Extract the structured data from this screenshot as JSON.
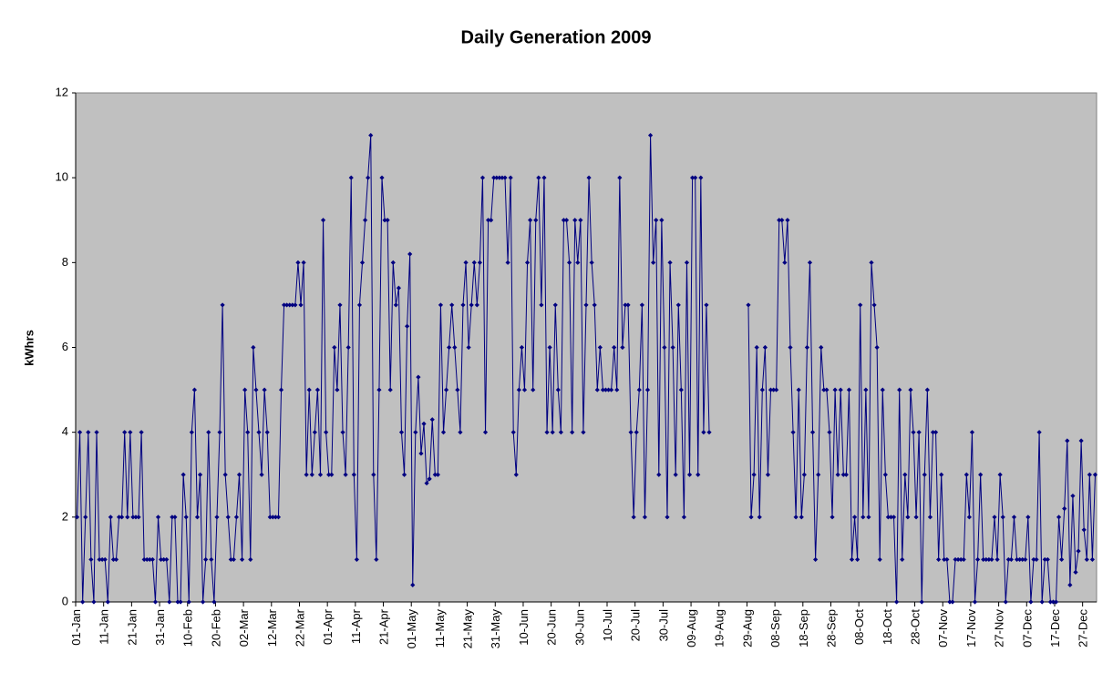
{
  "chart_data": {
    "type": "line",
    "title": "Daily Generation 2009",
    "y_label": "kWhrs",
    "ylim": [
      0,
      12
    ],
    "yticks": [
      0,
      2,
      4,
      6,
      8,
      10,
      12
    ],
    "grid": false,
    "background": "#c0c0c0",
    "categories": [
      "01-Jan",
      null,
      null,
      null,
      null,
      null,
      null,
      null,
      null,
      null,
      "11-Jan",
      null,
      null,
      null,
      null,
      null,
      null,
      null,
      null,
      null,
      "21-Jan",
      null,
      null,
      null,
      null,
      null,
      null,
      null,
      null,
      null,
      "31-Jan",
      null,
      null,
      null,
      null,
      null,
      null,
      null,
      null,
      null,
      "10-Feb",
      null,
      null,
      null,
      null,
      null,
      null,
      null,
      null,
      null,
      "20-Feb",
      null,
      null,
      null,
      null,
      null,
      null,
      null,
      null,
      null,
      "02-Mar",
      null,
      null,
      null,
      null,
      null,
      null,
      null,
      null,
      null,
      "12-Mar",
      null,
      null,
      null,
      null,
      null,
      null,
      null,
      null,
      null,
      "22-Mar",
      null,
      null,
      null,
      null,
      null,
      null,
      null,
      null,
      null,
      "01-Apr",
      null,
      null,
      null,
      null,
      null,
      null,
      null,
      null,
      null,
      "11-Apr",
      null,
      null,
      null,
      null,
      null,
      null,
      null,
      null,
      null,
      "21-Apr",
      null,
      null,
      null,
      null,
      null,
      null,
      null,
      null,
      null,
      "01-May",
      null,
      null,
      null,
      null,
      null,
      null,
      null,
      null,
      null,
      "11-May",
      null,
      null,
      null,
      null,
      null,
      null,
      null,
      null,
      null,
      "21-May",
      null,
      null,
      null,
      null,
      null,
      null,
      null,
      null,
      null,
      "31-May",
      null,
      null,
      null,
      null,
      null,
      null,
      null,
      null,
      null,
      "10-Jun",
      null,
      null,
      null,
      null,
      null,
      null,
      null,
      null,
      null,
      "20-Jun",
      null,
      null,
      null,
      null,
      null,
      null,
      null,
      null,
      null,
      "30-Jun",
      null,
      null,
      null,
      null,
      null,
      null,
      null,
      null,
      null,
      "10-Jul",
      null,
      null,
      null,
      null,
      null,
      null,
      null,
      null,
      null,
      "20-Jul",
      null,
      null,
      null,
      null,
      null,
      null,
      null,
      null,
      null,
      "30-Jul",
      null,
      null,
      null,
      null,
      null,
      null,
      null,
      null,
      null,
      "09-Aug",
      null,
      null,
      null,
      null,
      null,
      null,
      null,
      null,
      null,
      "19-Aug",
      null,
      null,
      null,
      null,
      null,
      null,
      null,
      null,
      null,
      "29-Aug",
      null,
      null,
      null,
      null,
      null,
      null,
      null,
      null,
      null,
      "08-Sep",
      null,
      null,
      null,
      null,
      null,
      null,
      null,
      null,
      null,
      "18-Sep",
      null,
      null,
      null,
      null,
      null,
      null,
      null,
      null,
      null,
      "28-Sep",
      null,
      null,
      null,
      null,
      null,
      null,
      null,
      null,
      null,
      "08-Oct",
      null,
      null,
      null,
      null,
      null,
      null,
      null,
      null,
      null,
      "18-Oct",
      null,
      null,
      null,
      null,
      null,
      null,
      null,
      null,
      null,
      "28-Oct",
      null,
      null,
      null,
      null,
      null,
      null,
      null,
      null,
      null,
      "07-Nov",
      null,
      null,
      null,
      null,
      null,
      null,
      null,
      null,
      null,
      "17-Nov",
      null,
      null,
      null,
      null,
      null,
      null,
      null,
      null,
      null,
      "27-Nov",
      null,
      null,
      null,
      null,
      null,
      null,
      null,
      null,
      null,
      "07-Dec",
      null,
      null,
      null,
      null,
      null,
      null,
      null,
      null,
      null,
      "17-Dec",
      null,
      null,
      null,
      null,
      null,
      null,
      null,
      null,
      null,
      "27-Dec",
      null,
      null,
      null,
      null
    ],
    "series": [
      {
        "color": "#000080",
        "values": [
          2,
          4,
          0,
          2,
          4,
          1,
          0,
          4,
          1,
          1,
          1,
          0,
          2,
          1,
          1,
          2,
          2,
          4,
          2,
          4,
          2,
          2,
          2,
          4,
          1,
          1,
          1,
          1,
          0,
          2,
          1,
          1,
          1,
          0,
          2,
          2,
          0,
          0,
          3,
          2,
          0,
          4,
          5,
          2,
          3,
          0,
          1,
          4,
          1,
          0,
          2,
          4,
          7,
          3,
          2,
          1,
          1,
          2,
          3,
          1,
          5,
          4,
          1,
          6,
          5,
          4,
          3,
          5,
          4,
          2,
          2,
          2,
          2,
          5,
          7,
          7,
          7,
          7,
          7,
          8,
          7,
          8,
          3,
          5,
          3,
          4,
          5,
          3,
          9,
          4,
          3,
          3,
          6,
          5,
          7,
          4,
          3,
          6,
          10,
          3,
          1,
          7,
          8,
          9,
          10,
          11,
          3,
          1,
          5,
          10,
          9,
          9,
          5,
          8,
          7,
          7.4,
          4,
          3,
          6.5,
          8.2,
          0.4,
          4,
          5.3,
          3.5,
          4.2,
          2.8,
          2.9,
          4.3,
          3,
          3,
          7,
          4,
          5,
          6,
          7,
          6,
          5,
          4,
          7,
          8,
          6,
          7,
          8,
          7,
          8,
          10,
          4,
          9,
          9,
          10,
          10,
          10,
          10,
          10,
          8,
          10,
          4,
          3,
          5,
          6,
          5,
          8,
          9,
          5,
          9,
          10,
          7,
          10,
          4,
          6,
          4,
          7,
          5,
          4,
          9,
          9,
          8,
          4,
          9,
          8,
          9,
          4,
          7,
          10,
          8,
          7,
          5,
          6,
          5,
          5,
          5,
          5,
          6,
          5,
          10,
          6,
          7,
          7,
          4,
          2,
          4,
          5,
          7,
          2,
          5,
          11,
          8,
          9,
          3,
          9,
          6,
          2,
          8,
          6,
          3,
          7,
          5,
          2,
          8,
          3,
          10,
          10,
          3,
          10,
          4,
          7,
          4,
          null,
          null,
          null,
          null,
          null,
          null,
          null,
          null,
          null,
          null,
          null,
          null,
          null,
          7,
          2,
          3,
          6,
          2,
          5,
          6,
          3,
          5,
          5,
          5,
          9,
          9,
          8,
          9,
          6,
          4,
          2,
          5,
          2,
          3,
          6,
          8,
          4,
          1,
          3,
          6,
          5,
          5,
          4,
          2,
          5,
          3,
          5,
          3,
          3,
          5,
          1,
          2,
          1,
          7,
          2,
          5,
          2,
          8,
          7,
          6,
          1,
          5,
          3,
          2,
          2,
          2,
          0,
          5,
          1,
          3,
          2,
          5,
          4,
          2,
          4,
          0,
          3,
          5,
          2,
          4,
          4,
          1,
          3,
          1,
          1,
          0,
          0,
          1,
          1,
          1,
          1,
          3,
          2,
          4,
          0,
          1,
          3,
          1,
          1,
          1,
          1,
          2,
          1,
          3,
          2,
          0,
          1,
          1,
          2,
          1,
          1,
          1,
          1,
          2,
          0,
          1,
          1,
          4,
          0,
          1,
          1,
          0,
          0,
          0,
          2,
          1,
          2.2,
          3.8,
          0.4,
          2.5,
          0.7,
          1.2,
          3.8,
          1.7,
          1,
          3,
          1,
          3
        ]
      }
    ]
  }
}
